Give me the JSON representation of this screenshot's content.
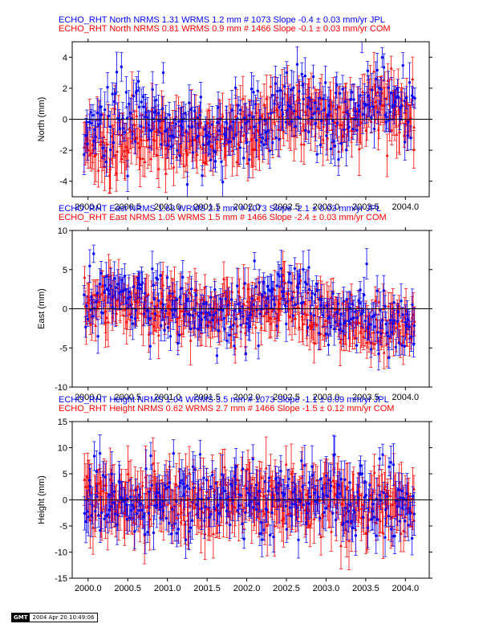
{
  "colors": {
    "jpl": "#0000ff",
    "com": "#ff0000",
    "axis": "#000000"
  },
  "chart_data": [
    {
      "type": "scatter",
      "ylabel": "North (mm)",
      "xlim": [
        1999.8,
        2004.3
      ],
      "ylim": [
        -5,
        5
      ],
      "xticks": [
        2000.0,
        2000.5,
        2001.0,
        2001.5,
        2002.0,
        2002.5,
        2003.0,
        2003.5,
        2004.0
      ],
      "xtick_labels": [
        "2000.0",
        "2000.5",
        "2001.0",
        "2001.5",
        "2002.0",
        "2002.5",
        "2003.0",
        "2003.5",
        "2004.0"
      ],
      "yticks": [
        -4,
        -2,
        0,
        2,
        4
      ],
      "ytick_labels": [
        "-4",
        "-2",
        "0",
        "2",
        "4"
      ],
      "header_lines": [
        "ECHO_RHT North NRMS 1.31 WRMS  1.2 mm # 1073 Slope   -0.4 ±  0.03 mm/yr JPL",
        "ECHO_RHT North NRMS 0.81 WRMS  0.9 mm # 1466 Slope   -0.1 ±  0.03 mm/yr COM"
      ],
      "series": [
        {
          "name": "JPL",
          "n": 1073,
          "nrms": 1.31,
          "wrms_mm": 1.2,
          "slope_mm_yr": -0.4,
          "slope_sigma": 0.03,
          "x_range": [
            1999.95,
            2004.12
          ],
          "typical_sigma_mm": 0.9,
          "trend": [
            [
              1999.95,
              0.3
            ],
            [
              2000.3,
              0.2
            ],
            [
              2000.7,
              0.2
            ],
            [
              2001.0,
              -0.2
            ],
            [
              2001.5,
              -0.8
            ],
            [
              2002.0,
              -0.7
            ],
            [
              2002.3,
              0.4
            ],
            [
              2002.6,
              1.3
            ],
            [
              2002.9,
              0.4
            ],
            [
              2003.2,
              0.0
            ],
            [
              2003.6,
              1.6
            ],
            [
              2004.0,
              1.0
            ],
            [
              2004.12,
              0.8
            ]
          ]
        },
        {
          "name": "COM",
          "n": 1466,
          "nrms": 0.81,
          "wrms_mm": 0.9,
          "slope_mm_yr": -0.1,
          "slope_sigma": 0.03,
          "x_range": [
            1999.95,
            2004.12
          ],
          "typical_sigma_mm": 1.3,
          "trend": [
            [
              1999.95,
              -1.2
            ],
            [
              2000.3,
              -1.4
            ],
            [
              2000.7,
              -1.0
            ],
            [
              2001.0,
              -1.2
            ],
            [
              2001.5,
              -1.2
            ],
            [
              2002.0,
              -0.9
            ],
            [
              2002.3,
              0.0
            ],
            [
              2002.6,
              0.8
            ],
            [
              2002.9,
              0.0
            ],
            [
              2003.2,
              0.0
            ],
            [
              2003.6,
              1.2
            ],
            [
              2004.0,
              0.2
            ],
            [
              2004.12,
              -0.4
            ]
          ]
        }
      ]
    },
    {
      "type": "scatter",
      "ylabel": "East (mm)",
      "xlim": [
        1999.8,
        2004.3
      ],
      "ylim": [
        -10,
        10
      ],
      "xticks": [
        2000.0,
        2000.5,
        2001.0,
        2001.5,
        2002.0,
        2002.5,
        2003.0,
        2003.5,
        2004.0
      ],
      "xtick_labels": [
        "2000.0",
        "2000.5",
        "2001.0",
        "2001.5",
        "2002.0",
        "2002.5",
        "2003.0",
        "2003.5",
        "2004.0"
      ],
      "yticks": [
        -10,
        -5,
        0,
        5,
        10
      ],
      "ytick_labels": [
        "-10",
        "-5",
        "0",
        "5",
        "10"
      ],
      "header_lines": [
        "ECHO_RHT East NRMS 1.63 WRMS  2.1 mm # 1073 Slope   -2.1 ±  0.03 mm/yr JPL",
        "ECHO_RHT East NRMS 1.05 WRMS  1.5 mm # 1466 Slope   -2.4 ±  0.03 mm/yr COM"
      ],
      "series": [
        {
          "name": "JPL",
          "n": 1073,
          "nrms": 1.63,
          "wrms_mm": 2.1,
          "slope_mm_yr": -2.1,
          "slope_sigma": 0.03,
          "x_range": [
            1999.95,
            2004.12
          ],
          "typical_sigma_mm": 1.6,
          "trend": [
            [
              1999.95,
              0.5
            ],
            [
              2000.5,
              1.0
            ],
            [
              2001.0,
              0.5
            ],
            [
              2001.5,
              -0.2
            ],
            [
              2001.9,
              -1.0
            ],
            [
              2002.3,
              1.5
            ],
            [
              2002.6,
              2.0
            ],
            [
              2003.0,
              0.0
            ],
            [
              2003.5,
              -1.0
            ],
            [
              2004.12,
              -1.8
            ]
          ]
        },
        {
          "name": "COM",
          "n": 1466,
          "nrms": 1.05,
          "wrms_mm": 1.5,
          "slope_mm_yr": -2.4,
          "slope_sigma": 0.03,
          "x_range": [
            1999.95,
            2004.12
          ],
          "typical_sigma_mm": 2.2,
          "trend": [
            [
              1999.95,
              0.5
            ],
            [
              2000.5,
              0.5
            ],
            [
              2001.0,
              0.0
            ],
            [
              2001.5,
              -0.5
            ],
            [
              2002.0,
              -0.5
            ],
            [
              2002.5,
              0.5
            ],
            [
              2003.0,
              -1.0
            ],
            [
              2003.5,
              -2.0
            ],
            [
              2004.12,
              -2.5
            ]
          ]
        }
      ]
    },
    {
      "type": "scatter",
      "ylabel": "Height (mm)",
      "xlim": [
        1999.8,
        2004.3
      ],
      "ylim": [
        -15,
        15
      ],
      "xticks": [
        2000.0,
        2000.5,
        2001.0,
        2001.5,
        2002.0,
        2002.5,
        2003.0,
        2003.5,
        2004.0
      ],
      "xtick_labels": [
        "2000.0",
        "2000.5",
        "2001.0",
        "2001.5",
        "2002.0",
        "2002.5",
        "2003.0",
        "2003.5",
        "2004.0"
      ],
      "yticks": [
        -15,
        -10,
        -5,
        0,
        5,
        10,
        15
      ],
      "ytick_labels": [
        "-15",
        "-10",
        "-5",
        "0",
        "5",
        "10",
        "15"
      ],
      "header_lines": [
        "ECHO_RHT Height NRMS 1.04 WRMS  3.5 mm # 1073 Slope   -1.1 ±  0.09 mm/yr JPL",
        "ECHO_RHT Height NRMS 0.62 WRMS  2.7 mm # 1466 Slope   -1.5 ±  0.12 mm/yr COM"
      ],
      "series": [
        {
          "name": "JPL",
          "n": 1073,
          "nrms": 1.04,
          "wrms_mm": 3.5,
          "slope_mm_yr": -1.1,
          "slope_sigma": 0.09,
          "x_range": [
            1999.95,
            2004.12
          ],
          "typical_sigma_mm": 3.0,
          "trend": [
            [
              1999.95,
              0.0
            ],
            [
              2000.5,
              0.0
            ],
            [
              2001.0,
              0.5
            ],
            [
              2001.5,
              0.0
            ],
            [
              2002.0,
              -0.5
            ],
            [
              2002.5,
              0.5
            ],
            [
              2003.0,
              0.0
            ],
            [
              2003.5,
              -0.5
            ],
            [
              2004.12,
              -0.5
            ]
          ]
        },
        {
          "name": "COM",
          "n": 1466,
          "nrms": 0.62,
          "wrms_mm": 2.7,
          "slope_mm_yr": -1.5,
          "slope_sigma": 0.12,
          "x_range": [
            1999.95,
            2004.12
          ],
          "typical_sigma_mm": 4.2,
          "trend": [
            [
              1999.95,
              1.0
            ],
            [
              2000.5,
              0.0
            ],
            [
              2001.0,
              0.5
            ],
            [
              2001.5,
              0.0
            ],
            [
              2002.0,
              0.0
            ],
            [
              2002.5,
              0.5
            ],
            [
              2003.0,
              0.0
            ],
            [
              2003.5,
              -1.5
            ],
            [
              2004.12,
              -1.0
            ]
          ]
        }
      ]
    }
  ],
  "footer": {
    "logo": "GMT",
    "timestamp": "2004 Apr 20 10:49:06"
  }
}
